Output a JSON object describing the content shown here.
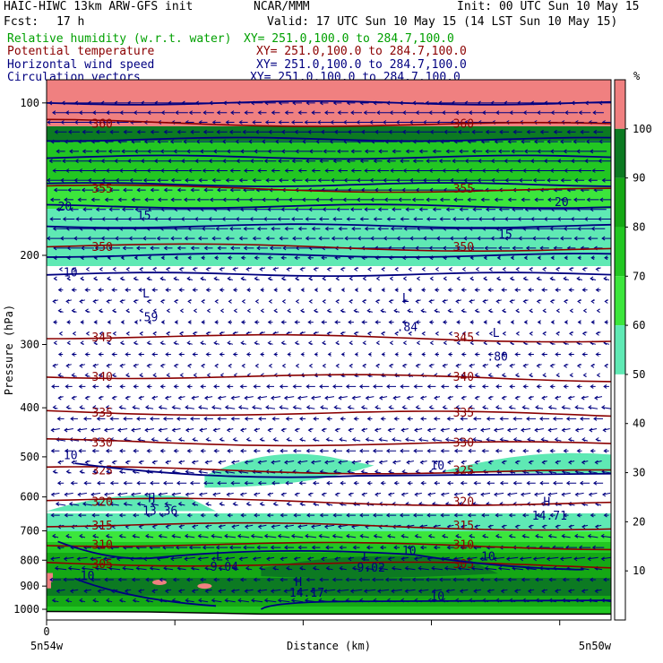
{
  "header": {
    "model": "HAIC-HIWC 13km ARW-GFS init",
    "org": "NCAR/MMM",
    "init": "Init: 00 UTC Sun 10 May 15",
    "fcst_label": "Fcst:",
    "fcst_value": "17 h",
    "valid": "Valid: 17 UTC Sun 10 May 15 (14 LST Sun 10 May 15)"
  },
  "fields": [
    {
      "name": "Relative humidity (w.r.t. water)",
      "xy": "XY= 251.0,100.0 to 284.7,100.0",
      "color": "#00a000"
    },
    {
      "name": "Potential temperature",
      "xy": "XY= 251.0,100.0 to 284.7,100.0",
      "color": "#8b0000"
    },
    {
      "name": "Horizontal wind speed",
      "xy": "XY= 251.0,100.0 to 284.7,100.0",
      "color": "#000080"
    },
    {
      "name": "Circulation vectors",
      "xy": "XY= 251.0,100.0 to 284.7,100.0",
      "color": "#000080"
    }
  ],
  "chart_data": {
    "type": "heatmap",
    "ylabel": "Pressure (hPa)",
    "xlabel": "Distance (km)",
    "yscale": "log",
    "ylim": [
      1050,
      90
    ],
    "yticks": [
      100,
      200,
      300,
      400,
      500,
      600,
      700,
      800,
      900,
      1000
    ],
    "xticks": [
      "0"
    ],
    "x_start_label": "5n54w",
    "x_end_label": "5n50w",
    "colorbar": {
      "unit": "%",
      "ticks": [
        10,
        20,
        30,
        40,
        50,
        60,
        70,
        80,
        90,
        100
      ],
      "bins": [
        {
          "range": [
            0,
            50
          ],
          "color": "#ffffff"
        },
        {
          "range": [
            50,
            60
          ],
          "color": "#5fe9b4"
        },
        {
          "range": [
            60,
            70
          ],
          "color": "#3ce63c"
        },
        {
          "range": [
            70,
            80
          ],
          "color": "#22c722"
        },
        {
          "range": [
            80,
            90
          ],
          "color": "#15a815"
        },
        {
          "range": [
            90,
            100
          ],
          "color": "#0c7a22"
        },
        {
          "range": [
            100,
            110
          ],
          "color": "#f08080"
        }
      ]
    },
    "theta_contours": [
      {
        "label": "305",
        "p": 815
      },
      {
        "label": "310",
        "p": 747
      },
      {
        "label": "315",
        "p": 685
      },
      {
        "label": "320",
        "p": 614
      },
      {
        "label": "325",
        "p": 533
      },
      {
        "label": "330",
        "p": 470
      },
      {
        "label": "335",
        "p": 410
      },
      {
        "label": "340",
        "p": 348
      },
      {
        "label": "345",
        "p": 291
      },
      {
        "label": "350",
        "p": 193
      },
      {
        "label": "355",
        "p": 148
      },
      {
        "label": "360",
        "p": 110
      }
    ],
    "speed_annotations": [
      {
        "text": "10",
        "x": 0.03,
        "p": 505
      },
      {
        "text": "10",
        "x": 0.68,
        "p": 530
      },
      {
        "text": "10",
        "x": 0.06,
        "p": 875
      },
      {
        "text": "10",
        "x": 0.63,
        "p": 780
      },
      {
        "text": "10",
        "x": 0.77,
        "p": 800
      },
      {
        "text": "10",
        "x": 0.68,
        "p": 960
      },
      {
        "text": "10",
        "x": 0.03,
        "p": 220
      },
      {
        "text": "15",
        "x": 0.16,
        "p": 170
      },
      {
        "text": "15",
        "x": 0.8,
        "p": 185
      },
      {
        "text": "20",
        "x": 0.02,
        "p": 163
      },
      {
        "text": "20",
        "x": 0.9,
        "p": 160
      },
      {
        "text": "L",
        "x": 0.17,
        "p": 242
      },
      {
        "text": ".59",
        "x": 0.16,
        "p": 270
      },
      {
        "text": "L",
        "x": 0.63,
        "p": 247
      },
      {
        "text": ".84",
        "x": 0.62,
        "p": 282
      },
      {
        "text": "L",
        "x": 0.79,
        "p": 290
      },
      {
        "text": ".80",
        "x": 0.78,
        "p": 323
      },
      {
        "text": "H",
        "x": 0.18,
        "p": 615
      },
      {
        "text": "13.36",
        "x": 0.17,
        "p": 650
      },
      {
        "text": "H",
        "x": 0.88,
        "p": 625
      },
      {
        "text": "14.71",
        "x": 0.86,
        "p": 665
      },
      {
        "text": "L",
        "x": 0.3,
        "p": 800
      },
      {
        "text": "9.04",
        "x": 0.29,
        "p": 840
      },
      {
        "text": "L",
        "x": 0.56,
        "p": 800
      },
      {
        "text": "9.02",
        "x": 0.55,
        "p": 842
      },
      {
        "text": "H",
        "x": 0.44,
        "p": 900
      },
      {
        "text": "14.17",
        "x": 0.43,
        "p": 945
      }
    ]
  }
}
